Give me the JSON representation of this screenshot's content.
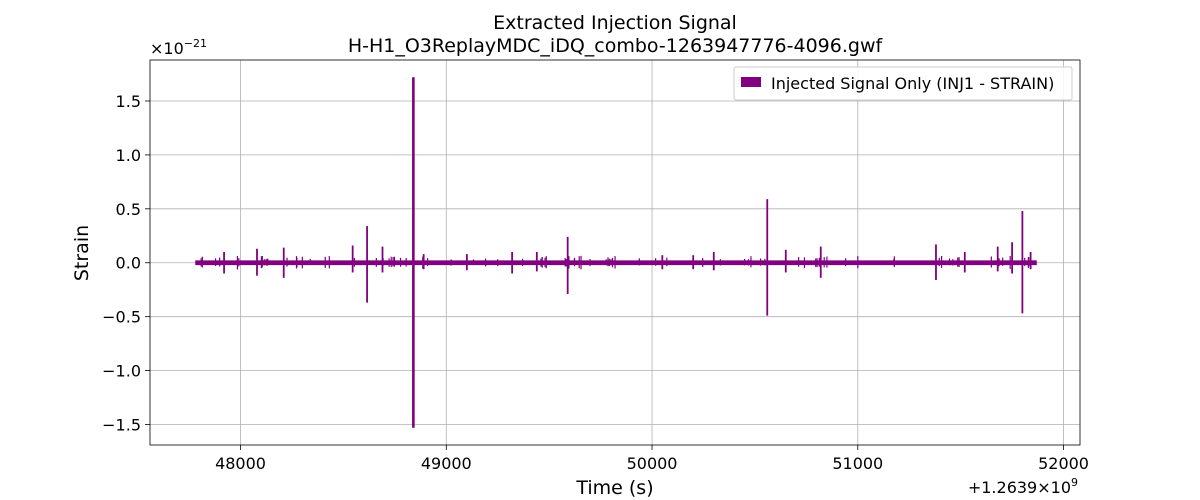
{
  "chart_data": {
    "type": "line",
    "title": "Extracted Injection Signal",
    "subtitle": "H-H1_O3ReplayMDC_iDQ_combo-1263947776-4096.gwf",
    "xlabel": "Time (s)",
    "ylabel": "Strain",
    "x_offset_label": "+1.2639×10",
    "x_offset_exponent": "9",
    "y_multiplier_label": "×10",
    "y_multiplier_exponent": "−21",
    "xlim": [
      47560,
      52080
    ],
    "ylim": [
      -1.69,
      1.88
    ],
    "xticks": [
      48000,
      49000,
      50000,
      51000,
      52000
    ],
    "xtick_labels": [
      "48000",
      "49000",
      "50000",
      "51000",
      "52000"
    ],
    "yticks": [
      -1.5,
      -1.0,
      -0.5,
      0.0,
      0.5,
      1.0,
      1.5
    ],
    "ytick_labels": [
      "−1.5",
      "−1.0",
      "−0.5",
      "0.0",
      "0.5",
      "1.0",
      "1.5"
    ],
    "grid": true,
    "legend_position": "upper right",
    "colors": {
      "series": "#800080"
    },
    "series": [
      {
        "name": "Injected Signal Only (INJ1 - STRAIN)",
        "baseline_start": 47780,
        "baseline_end": 51870,
        "spikes": [
          {
            "x": 47920,
            "up": 0.1,
            "down": -0.1
          },
          {
            "x": 48080,
            "up": 0.13,
            "down": -0.12
          },
          {
            "x": 48210,
            "up": 0.14,
            "down": -0.14
          },
          {
            "x": 48545,
            "up": 0.16,
            "down": -0.09
          },
          {
            "x": 48615,
            "up": 0.34,
            "down": -0.37
          },
          {
            "x": 48690,
            "up": 0.15,
            "down": -0.09
          },
          {
            "x": 48840,
            "up": 1.72,
            "down": -1.53
          },
          {
            "x": 48890,
            "up": 0.08,
            "down": -0.06
          },
          {
            "x": 49100,
            "up": 0.08,
            "down": -0.07
          },
          {
            "x": 49320,
            "up": 0.1,
            "down": -0.1
          },
          {
            "x": 49440,
            "up": 0.1,
            "down": -0.08
          },
          {
            "x": 49590,
            "up": 0.24,
            "down": -0.29
          },
          {
            "x": 50050,
            "up": 0.07,
            "down": -0.06
          },
          {
            "x": 50200,
            "up": 0.07,
            "down": -0.06
          },
          {
            "x": 50300,
            "up": 0.1,
            "down": -0.07
          },
          {
            "x": 50560,
            "up": 0.59,
            "down": -0.49
          },
          {
            "x": 50650,
            "up": 0.12,
            "down": -0.09
          },
          {
            "x": 50820,
            "up": 0.15,
            "down": -0.14
          },
          {
            "x": 51380,
            "up": 0.17,
            "down": -0.16
          },
          {
            "x": 51520,
            "up": 0.1,
            "down": -0.09
          },
          {
            "x": 51680,
            "up": 0.15,
            "down": -0.08
          },
          {
            "x": 51750,
            "up": 0.19,
            "down": -0.1
          },
          {
            "x": 51800,
            "up": 0.48,
            "down": -0.47
          },
          {
            "x": 51840,
            "up": 0.1,
            "down": -0.06
          }
        ]
      }
    ]
  }
}
